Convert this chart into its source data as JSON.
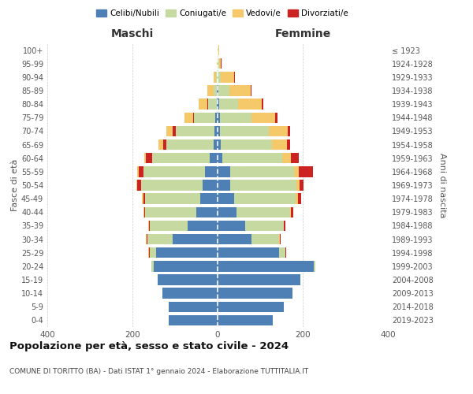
{
  "age_groups": [
    "0-4",
    "5-9",
    "10-14",
    "15-19",
    "20-24",
    "25-29",
    "30-34",
    "35-39",
    "40-44",
    "45-49",
    "50-54",
    "55-59",
    "60-64",
    "65-69",
    "70-74",
    "75-79",
    "80-84",
    "85-89",
    "90-94",
    "95-99",
    "100+"
  ],
  "birth_years": [
    "2019-2023",
    "2014-2018",
    "2009-2013",
    "2004-2008",
    "1999-2003",
    "1994-1998",
    "1989-1993",
    "1984-1988",
    "1979-1983",
    "1974-1978",
    "1969-1973",
    "1964-1968",
    "1959-1963",
    "1954-1958",
    "1949-1953",
    "1944-1948",
    "1939-1943",
    "1934-1938",
    "1929-1933",
    "1924-1928",
    "≤ 1923"
  ],
  "colors": {
    "celibi": "#4e7fb5",
    "coniugati": "#c5d9a0",
    "vedovi": "#f5c96a",
    "divorziati": "#cc2222"
  },
  "maschi": {
    "celibi": [
      115,
      115,
      130,
      140,
      150,
      145,
      105,
      70,
      50,
      40,
      35,
      30,
      18,
      10,
      8,
      5,
      2,
      1,
      0,
      0,
      0
    ],
    "coniugati": [
      0,
      0,
      0,
      0,
      5,
      15,
      60,
      90,
      120,
      130,
      145,
      145,
      135,
      110,
      90,
      50,
      20,
      8,
      3,
      0,
      0
    ],
    "vedovi": [
      0,
      0,
      0,
      0,
      0,
      1,
      1,
      1,
      1,
      2,
      2,
      3,
      5,
      10,
      15,
      20,
      20,
      15,
      5,
      1,
      0
    ],
    "divorziati": [
      0,
      0,
      0,
      0,
      0,
      2,
      2,
      2,
      3,
      5,
      8,
      10,
      15,
      8,
      8,
      2,
      2,
      1,
      1,
      0,
      0
    ]
  },
  "femmine": {
    "celibi": [
      130,
      155,
      175,
      195,
      225,
      145,
      80,
      65,
      45,
      38,
      30,
      30,
      12,
      8,
      5,
      5,
      3,
      2,
      0,
      0,
      0
    ],
    "coniugati": [
      0,
      0,
      0,
      0,
      5,
      15,
      65,
      90,
      125,
      145,
      155,
      150,
      140,
      120,
      115,
      75,
      45,
      25,
      8,
      3,
      1
    ],
    "vedovi": [
      0,
      0,
      0,
      0,
      0,
      0,
      1,
      1,
      2,
      5,
      8,
      10,
      20,
      35,
      45,
      55,
      55,
      50,
      30,
      5,
      2
    ],
    "divorziati": [
      0,
      0,
      0,
      0,
      0,
      1,
      2,
      3,
      5,
      8,
      8,
      35,
      18,
      8,
      5,
      5,
      5,
      3,
      2,
      1,
      0
    ]
  },
  "title": "Popolazione per età, sesso e stato civile - 2024",
  "subtitle": "COMUNE DI TORITTO (BA) - Dati ISTAT 1° gennaio 2024 - Elaborazione TUTTITALIA.IT",
  "xlabel_left": "Maschi",
  "xlabel_right": "Femmine",
  "ylabel_left": "Fasce di età",
  "ylabel_right": "Anni di nascita",
  "xlim": 400,
  "legend_labels": [
    "Celibi/Nubili",
    "Coniugati/e",
    "Vedovi/e",
    "Divorziati/e"
  ],
  "background": "#ffffff",
  "grid_color": "#cccccc"
}
